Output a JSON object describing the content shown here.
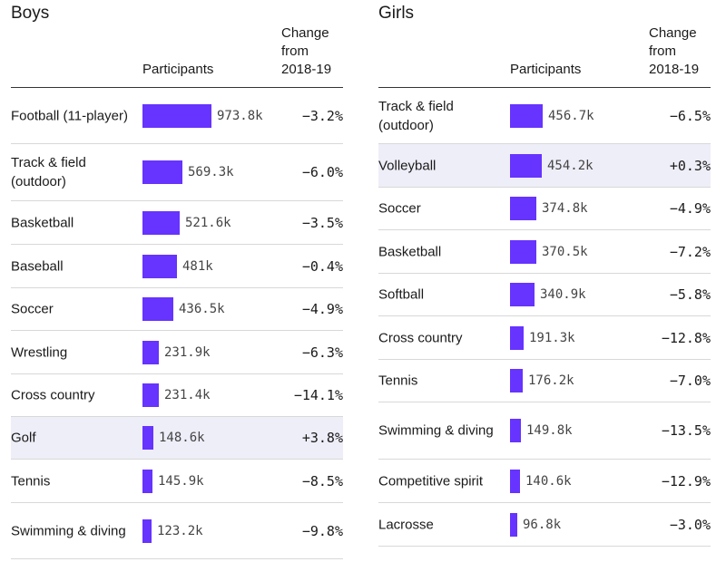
{
  "columns": {
    "participants": "Participants",
    "change": "Change from 2018-19"
  },
  "chart_data": [
    {
      "type": "bar",
      "title": "Boys",
      "categories": [
        "Football (11-player)",
        "Track & field (outdoor)",
        "Basketball",
        "Baseball",
        "Soccer",
        "Wrestling",
        "Cross country",
        "Golf",
        "Tennis",
        "Swimming & diving"
      ],
      "values": [
        973800,
        569300,
        521600,
        481000,
        436500,
        231900,
        231400,
        148600,
        145900,
        123200
      ],
      "value_labels": [
        "973.8k",
        "569.3k",
        "521.6k",
        "481k",
        "436.5k",
        "231.9k",
        "231.4k",
        "148.6k",
        "145.9k",
        "123.2k"
      ],
      "change_labels": [
        "−3.2%",
        "−6.0%",
        "−3.5%",
        "−0.4%",
        "−4.9%",
        "−6.3%",
        "−14.1%",
        "+3.8%",
        "−8.5%",
        "−9.8%"
      ],
      "highlighted": [
        "Golf"
      ],
      "bar_color": "#6633ff",
      "highlight_color": "#eeeef8"
    },
    {
      "type": "bar",
      "title": "Girls",
      "categories": [
        "Track & field (outdoor)",
        "Volleyball",
        "Soccer",
        "Basketball",
        "Softball",
        "Cross country",
        "Tennis",
        "Swimming & diving",
        "Competitive spirit",
        "Lacrosse"
      ],
      "values": [
        456700,
        454200,
        374800,
        370500,
        340900,
        191300,
        176200,
        149800,
        140600,
        96800
      ],
      "value_labels": [
        "456.7k",
        "454.2k",
        "374.8k",
        "370.5k",
        "340.9k",
        "191.3k",
        "176.2k",
        "149.8k",
        "140.6k",
        "96.8k"
      ],
      "change_labels": [
        "−6.5%",
        "+0.3%",
        "−4.9%",
        "−7.2%",
        "−5.8%",
        "−12.8%",
        "−7.0%",
        "−13.5%",
        "−12.9%",
        "−3.0%"
      ],
      "highlighted": [
        "Volleyball"
      ],
      "bar_color": "#6633ff",
      "highlight_color": "#eeeef8"
    }
  ]
}
